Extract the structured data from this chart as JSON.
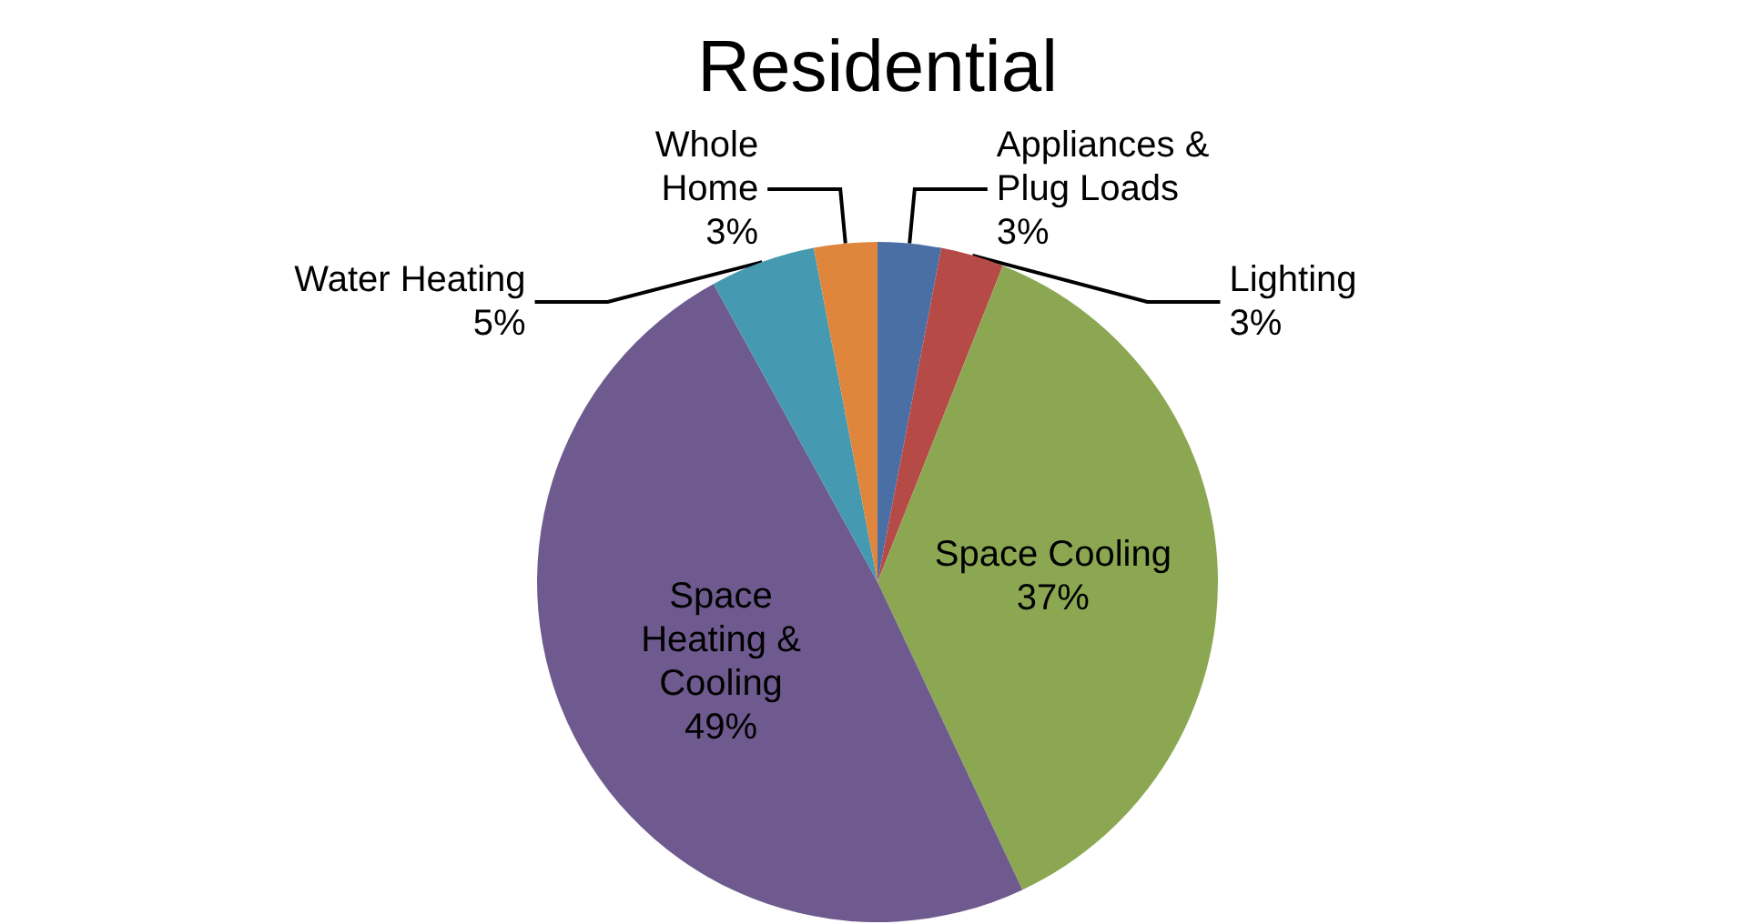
{
  "chart_data": {
    "type": "pie",
    "title": "Residential",
    "categories": [
      "Appliances &\nPlug Loads",
      "Lighting",
      "Space Cooling",
      "Space\nHeating &\nCooling",
      "Water Heating",
      "Whole\nHome"
    ],
    "values": [
      3,
      3,
      37,
      49,
      5,
      3
    ],
    "value_labels": [
      "3%",
      "3%",
      "37%",
      "49%",
      "5%",
      "3%"
    ],
    "colors": [
      "#4a6fa5",
      "#b64a47",
      "#8ba752",
      "#6e5a8e",
      "#4599b0",
      "#e0863c"
    ],
    "legend": false
  }
}
